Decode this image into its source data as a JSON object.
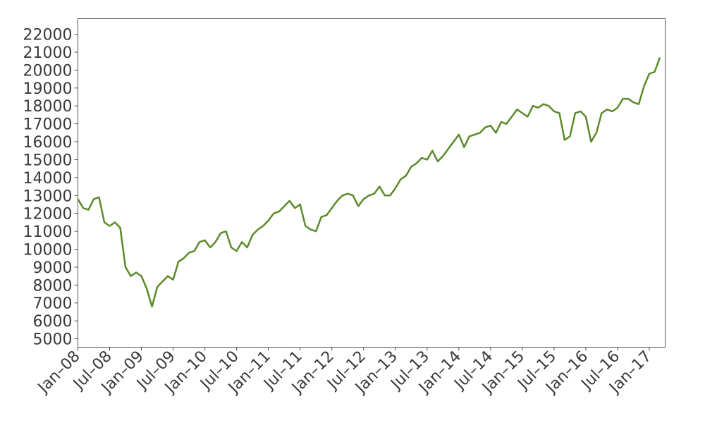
{
  "chart_data": {
    "type": "line",
    "x": [
      "2008-01",
      "2008-02",
      "2008-03",
      "2008-04",
      "2008-05",
      "2008-06",
      "2008-07",
      "2008-08",
      "2008-09",
      "2008-10",
      "2008-11",
      "2008-12",
      "2009-01",
      "2009-02",
      "2009-03",
      "2009-04",
      "2009-05",
      "2009-06",
      "2009-07",
      "2009-08",
      "2009-09",
      "2009-10",
      "2009-11",
      "2009-12",
      "2010-01",
      "2010-02",
      "2010-03",
      "2010-04",
      "2010-05",
      "2010-06",
      "2010-07",
      "2010-08",
      "2010-09",
      "2010-10",
      "2010-11",
      "2010-12",
      "2011-01",
      "2011-02",
      "2011-03",
      "2011-04",
      "2011-05",
      "2011-06",
      "2011-07",
      "2011-08",
      "2011-09",
      "2011-10",
      "2011-11",
      "2011-12",
      "2012-01",
      "2012-02",
      "2012-03",
      "2012-04",
      "2012-05",
      "2012-06",
      "2012-07",
      "2012-08",
      "2012-09",
      "2012-10",
      "2012-11",
      "2012-12",
      "2013-01",
      "2013-02",
      "2013-03",
      "2013-04",
      "2013-05",
      "2013-06",
      "2013-07",
      "2013-08",
      "2013-09",
      "2013-10",
      "2013-11",
      "2013-12",
      "2014-01",
      "2014-02",
      "2014-03",
      "2014-04",
      "2014-05",
      "2014-06",
      "2014-07",
      "2014-08",
      "2014-09",
      "2014-10",
      "2014-11",
      "2014-12",
      "2015-01",
      "2015-02",
      "2015-03",
      "2015-04",
      "2015-05",
      "2015-06",
      "2015-07",
      "2015-08",
      "2015-09",
      "2015-10",
      "2015-11",
      "2015-12",
      "2016-01",
      "2016-02",
      "2016-03",
      "2016-04",
      "2016-05",
      "2016-06",
      "2016-07",
      "2016-08",
      "2016-09",
      "2016-10",
      "2016-11",
      "2016-12",
      "2017-01",
      "2017-02",
      "2017-03"
    ],
    "series": [
      {
        "color": "#5a8a2a",
        "values": [
          12800,
          12300,
          12200,
          12800,
          12900,
          11500,
          11300,
          11500,
          11200,
          9000,
          8500,
          8700,
          8500,
          7800,
          6800,
          7900,
          8200,
          8500,
          8300,
          9300,
          9500,
          9800,
          9900,
          10400,
          10500,
          10100,
          10400,
          10900,
          11000,
          10100,
          9900,
          10400,
          10100,
          10800,
          11100,
          11300,
          11600,
          12000,
          12100,
          12400,
          12700,
          12300,
          12500,
          11300,
          11100,
          11000,
          11800,
          11900,
          12300,
          12700,
          13000,
          13100,
          13000,
          12400,
          12800,
          13000,
          13100,
          13500,
          13000,
          13000,
          13400,
          13900,
          14100,
          14600,
          14800,
          15100,
          15000,
          15500,
          14900,
          15200,
          15600,
          16000,
          16400,
          15700,
          16300,
          16400,
          16500,
          16800,
          16900,
          16500,
          17100,
          17000,
          17400,
          17800,
          17600,
          17400,
          18000,
          17900,
          18100,
          18000,
          17700,
          17600,
          16100,
          16300,
          17600,
          17700,
          17400,
          16000,
          16500,
          17600,
          17800,
          17700,
          17900,
          18400,
          18400,
          18200,
          18100,
          19100,
          19800,
          19900,
          20700
        ]
      }
    ],
    "xlim": [
      "2008-01",
      "2017-04"
    ],
    "xticks": [
      {
        "value": "2008-01",
        "label": "Jan–08"
      },
      {
        "value": "2008-07",
        "label": "Jul–08"
      },
      {
        "value": "2009-01",
        "label": "Jan–09"
      },
      {
        "value": "2009-07",
        "label": "Jul–09"
      },
      {
        "value": "2010-01",
        "label": "Jan–10"
      },
      {
        "value": "2010-07",
        "label": "Jul–10"
      },
      {
        "value": "2011-01",
        "label": "Jan–11"
      },
      {
        "value": "2011-07",
        "label": "Jul–11"
      },
      {
        "value": "2012-01",
        "label": "Jan–12"
      },
      {
        "value": "2012-07",
        "label": "Jul–12"
      },
      {
        "value": "2013-01",
        "label": "Jan–13"
      },
      {
        "value": "2013-07",
        "label": "Jul–13"
      },
      {
        "value": "2014-01",
        "label": "Jan–14"
      },
      {
        "value": "2014-07",
        "label": "Jul–14"
      },
      {
        "value": "2015-01",
        "label": "Jan–15"
      },
      {
        "value": "2015-07",
        "label": "Jul–15"
      },
      {
        "value": "2016-01",
        "label": "Jan–16"
      },
      {
        "value": "2016-07",
        "label": "Jul–16"
      },
      {
        "value": "2017-01",
        "label": "Jan–17"
      }
    ],
    "ylim": [
      4530,
      22870
    ],
    "yticks": [
      5000,
      6000,
      7000,
      8000,
      9000,
      10000,
      11000,
      12000,
      13000,
      14000,
      15000,
      16000,
      17000,
      18000,
      19000,
      20000,
      21000,
      22000
    ]
  }
}
